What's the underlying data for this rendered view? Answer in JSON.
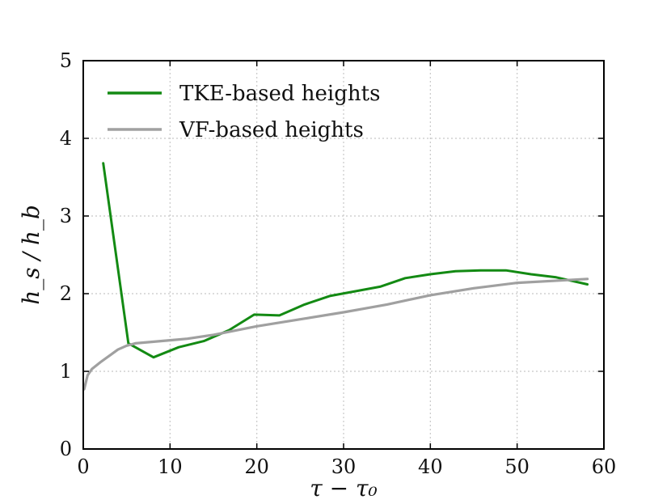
{
  "chart_data": {
    "type": "line",
    "title": "",
    "xlabel": "τ − τ₀",
    "ylabel": "h_s / h_b",
    "xlim": [
      0,
      60
    ],
    "ylim": [
      0,
      5
    ],
    "xticks": [
      0,
      10,
      20,
      30,
      40,
      50,
      60
    ],
    "yticks": [
      0,
      1,
      2,
      3,
      4,
      5
    ],
    "grid": true,
    "legend_position": "top-left",
    "series": [
      {
        "name": "TKE-based heights",
        "color": "#138a13",
        "x": [
          2.3,
          5.2,
          8.1,
          11.0,
          13.9,
          16.8,
          19.7,
          22.6,
          25.5,
          28.4,
          31.3,
          34.2,
          37.1,
          40.0,
          42.9,
          45.8,
          48.7,
          51.6,
          54.5,
          58.1
        ],
        "y": [
          3.68,
          1.36,
          1.18,
          1.31,
          1.39,
          1.53,
          1.73,
          1.72,
          1.86,
          1.97,
          2.03,
          2.09,
          2.2,
          2.25,
          2.29,
          2.3,
          2.3,
          2.25,
          2.21,
          2.12
        ]
      },
      {
        "name": "VF-based heights",
        "color": "#a0a0a0",
        "x": [
          0.1,
          0.5,
          1.0,
          2.0,
          3.0,
          4.0,
          5.0,
          6.0,
          8.0,
          10.0,
          12.0,
          15.0,
          20.0,
          25.0,
          30.0,
          35.0,
          40.0,
          45.0,
          50.0,
          55.0,
          58.1
        ],
        "y": [
          0.77,
          0.95,
          1.03,
          1.12,
          1.2,
          1.28,
          1.33,
          1.36,
          1.38,
          1.4,
          1.42,
          1.47,
          1.58,
          1.67,
          1.76,
          1.86,
          1.98,
          2.07,
          2.14,
          2.17,
          2.19
        ]
      }
    ]
  }
}
